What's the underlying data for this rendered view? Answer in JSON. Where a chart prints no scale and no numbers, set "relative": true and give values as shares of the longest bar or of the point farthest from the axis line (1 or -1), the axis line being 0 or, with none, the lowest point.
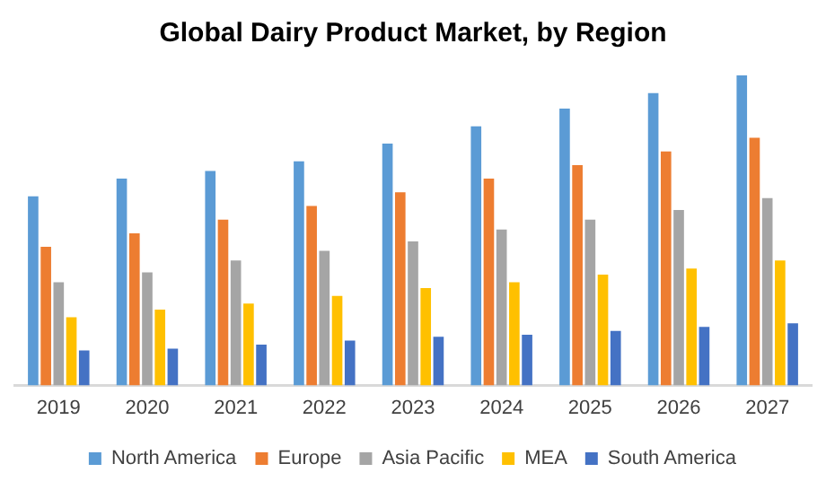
{
  "chart_data": {
    "type": "bar",
    "title": "Global Dairy Product Market, by Region",
    "relative": true,
    "grid": false,
    "legend": "bottom",
    "categories": [
      "2019",
      "2020",
      "2021",
      "2022",
      "2023",
      "2024",
      "2025",
      "2026",
      "2027"
    ],
    "series": [
      {
        "name": "North America",
        "color": "#5b9bd5",
        "values": [
          0.61,
          0.667,
          0.692,
          0.723,
          0.78,
          0.836,
          0.893,
          0.943,
          1
        ]
      },
      {
        "name": "Europe",
        "color": "#ed7d31",
        "values": [
          0.447,
          0.491,
          0.535,
          0.579,
          0.623,
          0.667,
          0.711,
          0.755,
          0.799
        ]
      },
      {
        "name": "Asia Pacific",
        "color": "#a5a5a5",
        "values": [
          0.333,
          0.365,
          0.403,
          0.434,
          0.465,
          0.503,
          0.535,
          0.566,
          0.604
        ]
      },
      {
        "name": "MEA",
        "color": "#ffc000",
        "values": [
          0.22,
          0.245,
          0.264,
          0.289,
          0.314,
          0.333,
          0.358,
          0.377,
          0.403
        ]
      },
      {
        "name": "South America",
        "color": "#4472c4",
        "values": [
          0.113,
          0.119,
          0.132,
          0.145,
          0.157,
          0.164,
          0.176,
          0.189,
          0.201
        ]
      }
    ]
  }
}
